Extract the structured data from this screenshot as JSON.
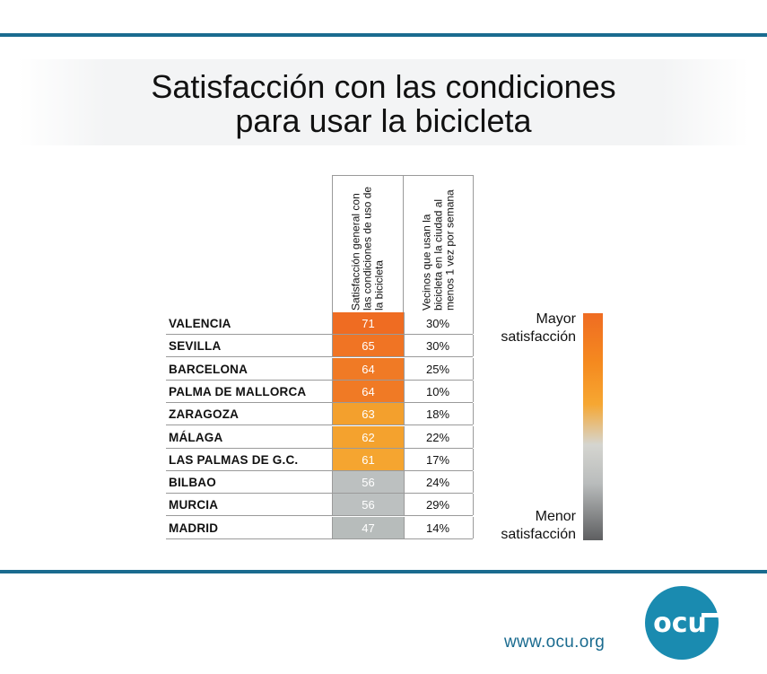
{
  "chart_data": {
    "type": "table",
    "title_lines": [
      "Satisfacción con las condiciones",
      "para usar la bicicleta"
    ],
    "columns": [
      "Satisfacción general con las condiciones de uso de la bicicleta",
      "Vecinos que usan la bicicleta en la ciudad al menos 1 vez por semana"
    ],
    "rows": [
      {
        "city": "VALENCIA",
        "score": 71,
        "score_label": "71",
        "weekly": "30%",
        "color": "#ef6c22"
      },
      {
        "city": "SEVILLA",
        "score": 65,
        "score_label": "65",
        "weekly": "30%",
        "color": "#f07424"
      },
      {
        "city": "BARCELONA",
        "score": 64,
        "score_label": "64",
        "weekly": "25%",
        "color": "#f07a25"
      },
      {
        "city": "PALMA DE MALLORCA",
        "score": 64,
        "score_label": "64",
        "weekly": "10%",
        "color": "#f07a25"
      },
      {
        "city": "ZARAGOZA",
        "score": 63,
        "score_label": "63",
        "weekly": "18%",
        "color": "#f3a02d"
      },
      {
        "city": "MÁLAGA",
        "score": 62,
        "score_label": "62",
        "weekly": "22%",
        "color": "#f4a22e"
      },
      {
        "city": "LAS PALMAS DE G.C.",
        "score": 61,
        "score_label": "61",
        "weekly": "17%",
        "color": "#f5a530"
      },
      {
        "city": "BILBAO",
        "score": 56,
        "score_label": "56",
        "weekly": "24%",
        "color": "#bcc0c0"
      },
      {
        "city": "MURCIA",
        "score": 56,
        "score_label": "56",
        "weekly": "29%",
        "color": "#bcc0c0"
      },
      {
        "city": "MADRID",
        "score": 47,
        "score_label": "47",
        "weekly": "14%",
        "color": "#b7bcbb"
      }
    ],
    "legend": {
      "top_lines": [
        "Mayor",
        "satisfacción"
      ],
      "bottom_lines": [
        "Menor",
        "satisfacción"
      ]
    }
  },
  "footer": {
    "url": "www.ocu.org",
    "logo_text": "ocu"
  },
  "colors": {
    "accent": "#1a6b8f",
    "logo": "#1a8bb0"
  }
}
